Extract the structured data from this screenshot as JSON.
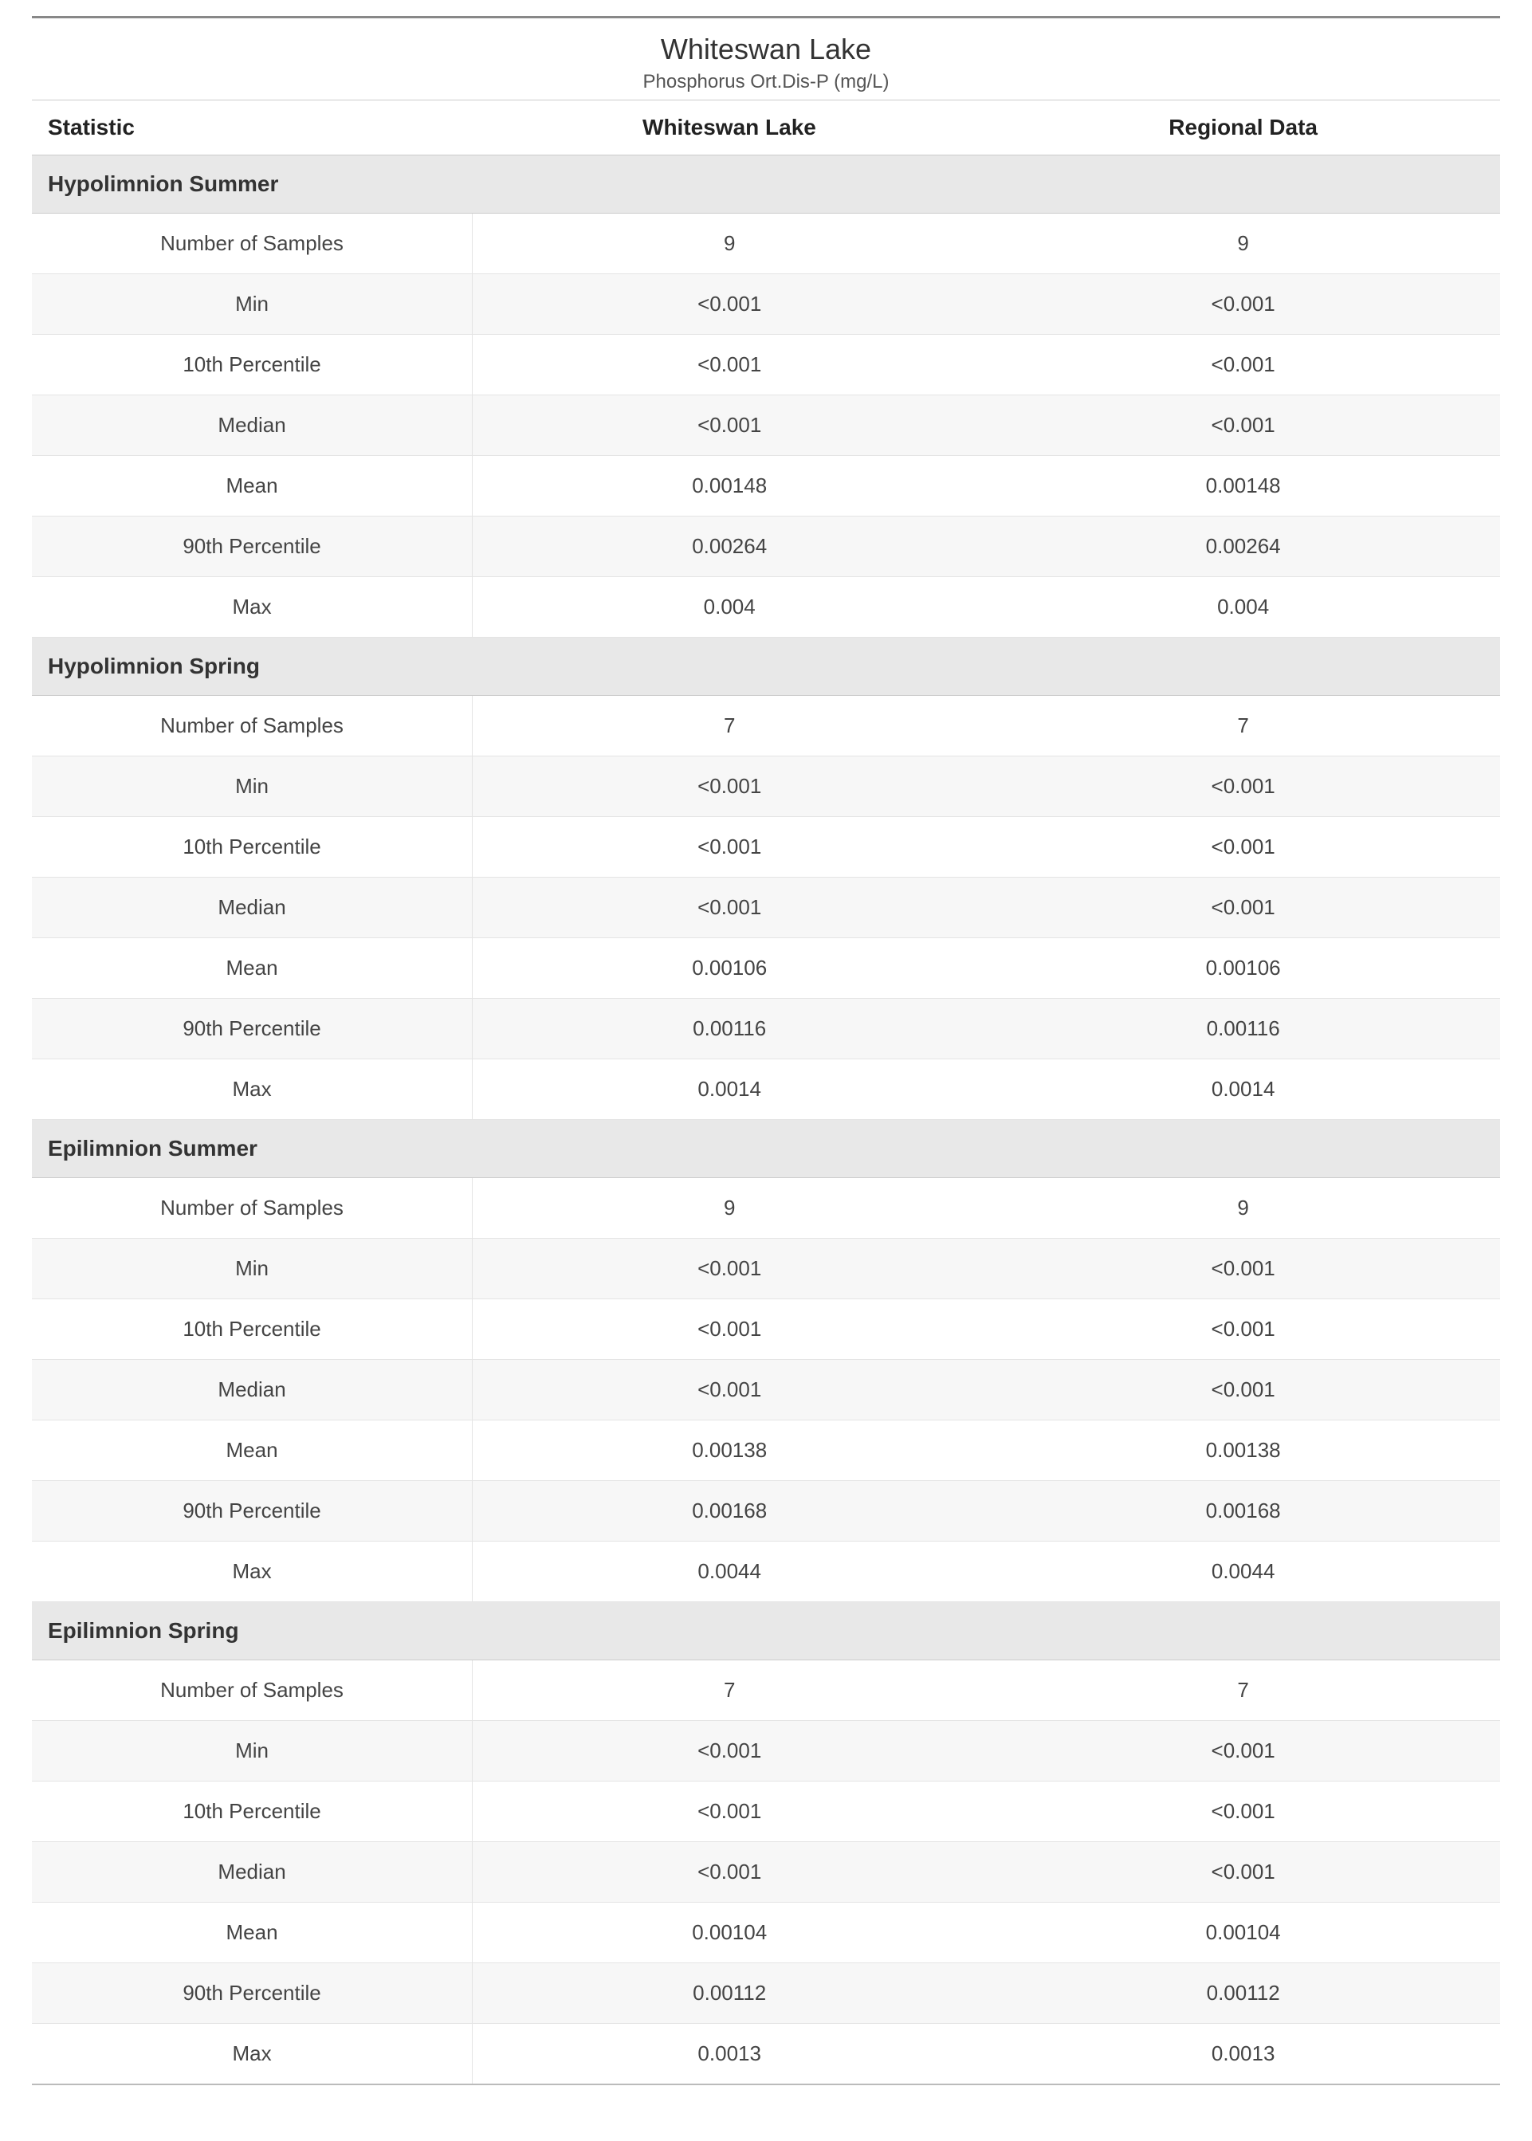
{
  "title": "Whiteswan Lake",
  "subtitle": "Phosphorus Ort.Dis-P (mg/L)",
  "columns": [
    "Statistic",
    "Whiteswan Lake",
    "Regional Data"
  ],
  "styling": {
    "type": "table",
    "top_border_color": "#888888",
    "header_bg_color": "#e8e8e8",
    "row_alt_bg_color": "#f7f7f7",
    "row_bg_color": "#ffffff",
    "border_color": "#e4e4e4",
    "title_fontsize": 36,
    "subtitle_fontsize": 24,
    "header_fontsize": 28,
    "section_header_fontsize": 28,
    "cell_fontsize": 26,
    "text_color": "#333333",
    "col_widths_pct": [
      30,
      35,
      35
    ],
    "col_align": [
      "center",
      "center",
      "center"
    ]
  },
  "sections": [
    {
      "name": "Hypolimnion Summer",
      "rows": [
        {
          "statistic": "Number of Samples",
          "lake": "9",
          "regional": "9"
        },
        {
          "statistic": "Min",
          "lake": "<0.001",
          "regional": "<0.001"
        },
        {
          "statistic": "10th Percentile",
          "lake": "<0.001",
          "regional": "<0.001"
        },
        {
          "statistic": "Median",
          "lake": "<0.001",
          "regional": "<0.001"
        },
        {
          "statistic": "Mean",
          "lake": "0.00148",
          "regional": "0.00148"
        },
        {
          "statistic": "90th Percentile",
          "lake": "0.00264",
          "regional": "0.00264"
        },
        {
          "statistic": "Max",
          "lake": "0.004",
          "regional": "0.004"
        }
      ]
    },
    {
      "name": "Hypolimnion Spring",
      "rows": [
        {
          "statistic": "Number of Samples",
          "lake": "7",
          "regional": "7"
        },
        {
          "statistic": "Min",
          "lake": "<0.001",
          "regional": "<0.001"
        },
        {
          "statistic": "10th Percentile",
          "lake": "<0.001",
          "regional": "<0.001"
        },
        {
          "statistic": "Median",
          "lake": "<0.001",
          "regional": "<0.001"
        },
        {
          "statistic": "Mean",
          "lake": "0.00106",
          "regional": "0.00106"
        },
        {
          "statistic": "90th Percentile",
          "lake": "0.00116",
          "regional": "0.00116"
        },
        {
          "statistic": "Max",
          "lake": "0.0014",
          "regional": "0.0014"
        }
      ]
    },
    {
      "name": "Epilimnion Summer",
      "rows": [
        {
          "statistic": "Number of Samples",
          "lake": "9",
          "regional": "9"
        },
        {
          "statistic": "Min",
          "lake": "<0.001",
          "regional": "<0.001"
        },
        {
          "statistic": "10th Percentile",
          "lake": "<0.001",
          "regional": "<0.001"
        },
        {
          "statistic": "Median",
          "lake": "<0.001",
          "regional": "<0.001"
        },
        {
          "statistic": "Mean",
          "lake": "0.00138",
          "regional": "0.00138"
        },
        {
          "statistic": "90th Percentile",
          "lake": "0.00168",
          "regional": "0.00168"
        },
        {
          "statistic": "Max",
          "lake": "0.0044",
          "regional": "0.0044"
        }
      ]
    },
    {
      "name": "Epilimnion Spring",
      "rows": [
        {
          "statistic": "Number of Samples",
          "lake": "7",
          "regional": "7"
        },
        {
          "statistic": "Min",
          "lake": "<0.001",
          "regional": "<0.001"
        },
        {
          "statistic": "10th Percentile",
          "lake": "<0.001",
          "regional": "<0.001"
        },
        {
          "statistic": "Median",
          "lake": "<0.001",
          "regional": "<0.001"
        },
        {
          "statistic": "Mean",
          "lake": "0.00104",
          "regional": "0.00104"
        },
        {
          "statistic": "90th Percentile",
          "lake": "0.00112",
          "regional": "0.00112"
        },
        {
          "statistic": "Max",
          "lake": "0.0013",
          "regional": "0.0013"
        }
      ]
    }
  ]
}
